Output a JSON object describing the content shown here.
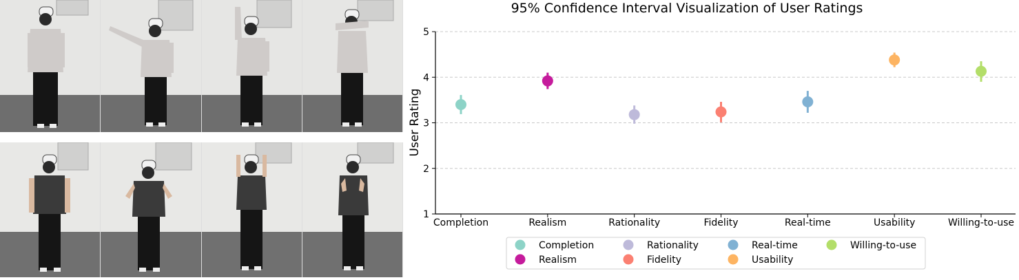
{
  "photo_panel": {
    "top_row": [
      "frame-1",
      "frame-2",
      "frame-3",
      "frame-4"
    ],
    "bottom_row": [
      "frame-1",
      "frame-2",
      "frame-3",
      "frame-4"
    ]
  },
  "chart_data": {
    "type": "scatter",
    "title": "95% Confidence Interval Visualization of User Ratings",
    "xlabel": "",
    "ylabel": "User Rating",
    "ylim": [
      1,
      5
    ],
    "yticks": [
      "1",
      "2",
      "3",
      "4",
      "5"
    ],
    "grid": "horizontal dashed",
    "legend_position": "bottom-center",
    "categories": [
      "Completion",
      "Realism",
      "Rationality",
      "Fidelity",
      "Real-time",
      "Usability",
      "Willing-to-use"
    ],
    "series": [
      {
        "name": "Completion",
        "mean": 3.4,
        "ci_low": 3.19,
        "ci_high": 3.61,
        "color": "#8dd3c7"
      },
      {
        "name": "Realism",
        "mean": 3.92,
        "ci_low": 3.74,
        "ci_high": 4.1,
        "color": "#c51b9c"
      },
      {
        "name": "Rationality",
        "mean": 3.18,
        "ci_low": 2.98,
        "ci_high": 3.38,
        "color": "#bebada"
      },
      {
        "name": "Fidelity",
        "mean": 3.24,
        "ci_low": 3.01,
        "ci_high": 3.46,
        "color": "#fb8072"
      },
      {
        "name": "Real-time",
        "mean": 3.46,
        "ci_low": 3.22,
        "ci_high": 3.7,
        "color": "#80b1d3"
      },
      {
        "name": "Usability",
        "mean": 4.38,
        "ci_low": 4.22,
        "ci_high": 4.54,
        "color": "#fdb462"
      },
      {
        "name": "Willing-to-use",
        "mean": 4.13,
        "ci_low": 3.9,
        "ci_high": 4.35,
        "color": "#b3de69"
      }
    ]
  }
}
